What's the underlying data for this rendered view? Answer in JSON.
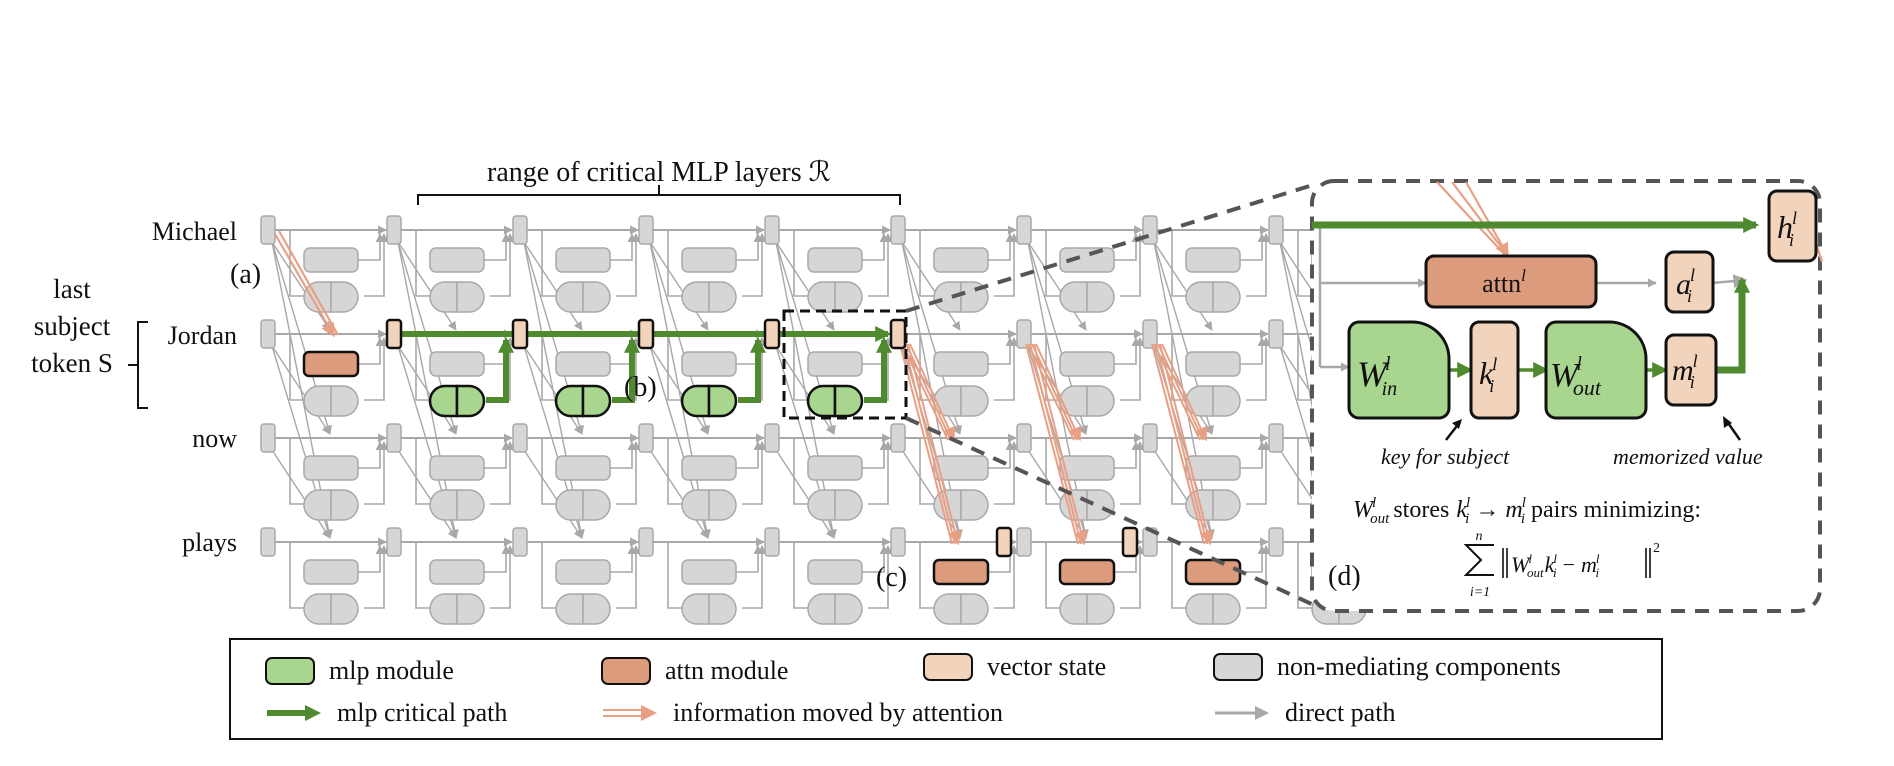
{
  "title": "range of critical MLP layers ℛ",
  "tokens": [
    "Michael",
    "Jordan",
    "now",
    "plays"
  ],
  "subject_label": [
    "last",
    "subject",
    "token S"
  ],
  "panel_labels": {
    "a": "(a)",
    "b": "(b)",
    "c": "(c)",
    "d": "(d)"
  },
  "zoom_panel": {
    "attn": "attn",
    "a": "a",
    "h": "h",
    "m": "m",
    "k": "k",
    "w_in": "W",
    "w_out": "W",
    "sub_in": "in",
    "sub_out": "out",
    "sup": "l",
    "sub_i": "i",
    "key_caption": "key for subject",
    "value_caption": "memorized value",
    "stores_pre": "stores",
    "arrow_text": "→",
    "stores_post": "pairs minimizing:",
    "sum_top": "n",
    "sum_bottom": "i=1",
    "minus": "−",
    "square": "2"
  },
  "legend": {
    "mlp_module": "mlp module",
    "attn_module": "attn module",
    "vector_state": "vector state",
    "non_mediating": "non-mediating components",
    "mlp_path": "mlp critical path",
    "attention_info": "information moved by attention",
    "direct_path": "direct path"
  },
  "colors": {
    "mlp": "#a8d68f",
    "attn": "#dc9b7c",
    "vector": "#f2d4bc",
    "gray": "#d6d6d6",
    "gray_stroke": "#a8a8a8",
    "green_path": "#4f8a2f",
    "attn_arrow": "#e8a085"
  }
}
